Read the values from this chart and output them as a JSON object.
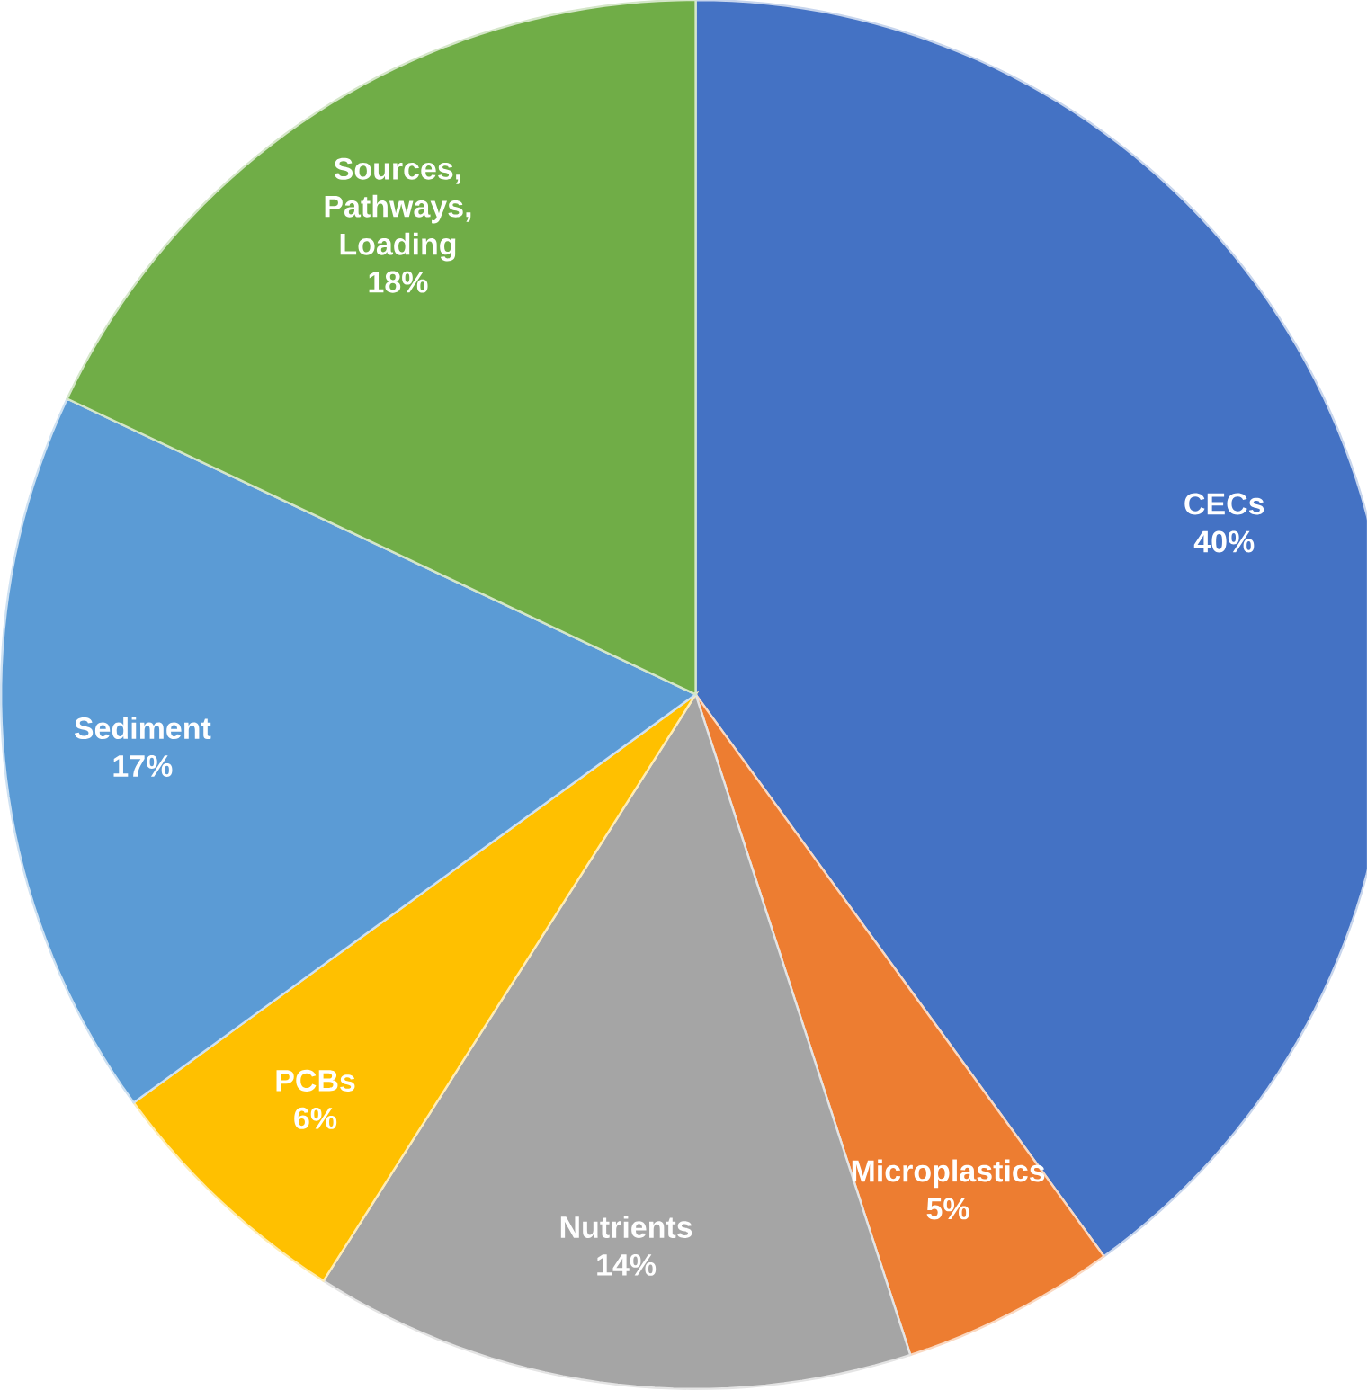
{
  "chart_data": {
    "type": "pie",
    "categories": [
      "CECs",
      "Microplastics",
      "Nutrients",
      "PCBs",
      "Sediment",
      "Sources, Pathways, Loading"
    ],
    "values": [
      40,
      5,
      14,
      6,
      17,
      18
    ],
    "value_labels": [
      "40%",
      "5%",
      "14%",
      "6%",
      "17%",
      "18%"
    ],
    "colors": [
      "#4472c4",
      "#ed7d31",
      "#a5a5a5",
      "#ffc000",
      "#5b9bd5",
      "#70ad47"
    ]
  }
}
